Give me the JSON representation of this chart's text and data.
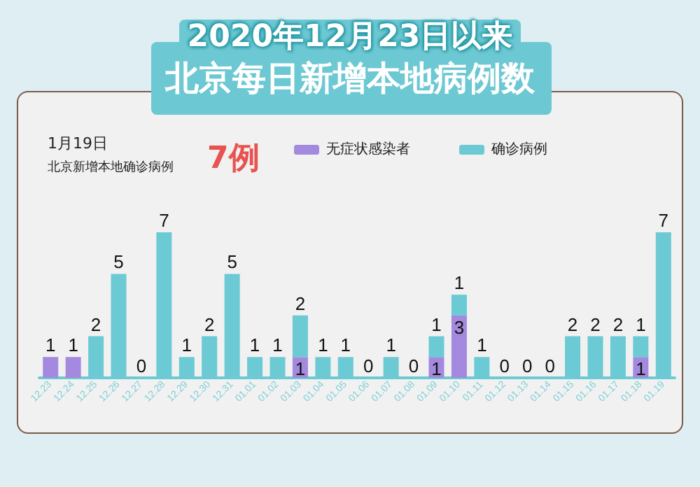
{
  "chart_data": {
    "type": "bar",
    "title": "2020年12月23日以来",
    "subtitle": "北京每日新增本地病例数",
    "annotations": [
      "1月19日",
      "北京新增本地确诊病例",
      "7例"
    ],
    "categories": [
      "12.23",
      "12.24",
      "12.25",
      "12.26",
      "12.27",
      "12.28",
      "12.29",
      "12.30",
      "12.31",
      "01.01",
      "01.02",
      "01.03",
      "01.04",
      "01.05",
      "01.06",
      "01.07",
      "01.08",
      "01.09",
      "01.10",
      "01.11",
      "01.12",
      "01.13",
      "01.14",
      "01.15",
      "01.16",
      "01.17",
      "01.18",
      "01.19"
    ],
    "stacked": true,
    "series": [
      {
        "name": "无症状感染者",
        "color": "#a38ade",
        "values": [
          1,
          1,
          null,
          null,
          null,
          null,
          null,
          null,
          null,
          null,
          null,
          1,
          null,
          null,
          null,
          null,
          null,
          1,
          3,
          null,
          null,
          null,
          null,
          null,
          null,
          null,
          1,
          null
        ],
        "value_labels": [
          "1",
          "1",
          null,
          null,
          null,
          null,
          null,
          null,
          null,
          null,
          null,
          "1",
          null,
          null,
          null,
          null,
          null,
          "1",
          "3",
          null,
          null,
          null,
          null,
          null,
          null,
          null,
          "1",
          null
        ]
      },
      {
        "name": "确诊病例",
        "color": "#6ccad4",
        "values": [
          null,
          null,
          2,
          5,
          0,
          7,
          1,
          2,
          5,
          1,
          1,
          2,
          1,
          1,
          0,
          1,
          0,
          1,
          1,
          1,
          0,
          0,
          0,
          2,
          2,
          2,
          1,
          7
        ],
        "value_labels": [
          null,
          null,
          "2",
          "5",
          "0",
          "7",
          "1",
          "2",
          "5",
          "1",
          "1",
          "2",
          "1",
          "1",
          "0",
          "1",
          "0",
          "1",
          "1",
          "1",
          "0",
          "0",
          "0",
          "2",
          "2",
          "2",
          "1",
          "7"
        ]
      }
    ],
    "legend": "top",
    "tick_labels": "x"
  }
}
